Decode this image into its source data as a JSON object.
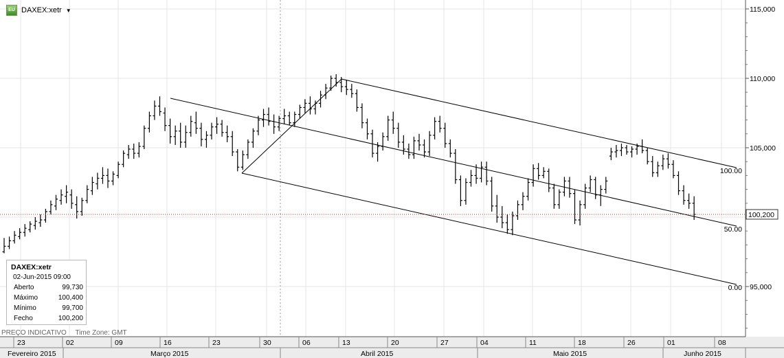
{
  "header": {
    "symbol": "DAXEX:xetr",
    "icon": "tradestation-chart-icon",
    "dropdown_icon": "caret-down-icon"
  },
  "info_box": {
    "symbol": "DAXEX:xetr",
    "datetime": "02-Jun-2015 09:00",
    "rows": [
      {
        "label": "Aberto",
        "value": "99,730"
      },
      {
        "label": "Máximo",
        "value": "100,400"
      },
      {
        "label": "Mínimo",
        "value": "99,700"
      },
      {
        "label": "Fecho",
        "value": "100,200"
      }
    ]
  },
  "footer": {
    "price_label": "PREÇO INDICATIVO",
    "timezone": "Time Zone: GMT"
  },
  "colors": {
    "price_bars": "#000000",
    "current_price_line": "#b03030",
    "grid": "#e6e6e6",
    "channel": "#000000"
  },
  "chart_data": {
    "type": "bar",
    "subtype": "ohlc",
    "y_axis": {
      "ticks": [
        {
          "value": 95,
          "label": "95,000"
        },
        {
          "value": 100,
          "label": ""
        },
        {
          "value": 105,
          "label": "105,000"
        },
        {
          "value": 110,
          "label": "110,000"
        },
        {
          "value": 115,
          "label": "115,000"
        }
      ],
      "range": [
        92.0,
        116.0
      ],
      "position": "right"
    },
    "current_price": {
      "value": 100.2,
      "label": "100,200"
    },
    "x_axis": {
      "day_ticks": [
        "23",
        "02",
        "09",
        "16",
        "23",
        "30",
        "06",
        "13",
        "20",
        "27",
        "04",
        "11",
        "18",
        "26",
        "01",
        "08"
      ],
      "months": [
        "Fevereiro 2015",
        "Março 2015",
        "Abril 2015",
        "Maio 2015",
        "Junho 2015"
      ]
    },
    "fib_levels": [
      {
        "label": "100.00",
        "value": 103.4
      },
      {
        "label": "50.00",
        "value": 99.2
      },
      {
        "label": "0.00",
        "value": 95.05
      }
    ],
    "ohlc": [
      [
        97.5,
        98.5,
        97.4,
        97.9
      ],
      [
        97.9,
        98.6,
        97.7,
        98.3
      ],
      [
        98.3,
        99.0,
        98.1,
        98.7
      ],
      [
        98.6,
        99.2,
        98.4,
        98.9
      ],
      [
        98.9,
        99.5,
        98.6,
        99.2
      ],
      [
        99.1,
        99.7,
        98.9,
        99.5
      ],
      [
        99.4,
        100.0,
        99.1,
        99.7
      ],
      [
        99.6,
        100.2,
        99.3,
        99.8
      ],
      [
        99.8,
        100.6,
        99.6,
        100.4
      ],
      [
        100.4,
        101.2,
        100.2,
        100.9
      ],
      [
        100.8,
        101.6,
        100.5,
        101.3
      ],
      [
        101.2,
        102.0,
        100.9,
        101.6
      ],
      [
        101.5,
        102.3,
        101.0,
        101.8
      ],
      [
        101.6,
        102.0,
        100.6,
        101.0
      ],
      [
        100.9,
        101.5,
        99.9,
        100.4
      ],
      [
        100.4,
        101.4,
        100.1,
        101.2
      ],
      [
        101.2,
        102.3,
        101.0,
        102.0
      ],
      [
        101.9,
        102.9,
        101.6,
        102.5
      ],
      [
        102.4,
        103.2,
        102.0,
        102.8
      ],
      [
        102.8,
        103.6,
        102.4,
        103.0
      ],
      [
        103.0,
        103.5,
        102.1,
        102.6
      ],
      [
        102.6,
        103.3,
        102.3,
        103.1
      ],
      [
        103.0,
        104.0,
        102.8,
        103.8
      ],
      [
        103.8,
        104.8,
        103.6,
        104.6
      ],
      [
        104.5,
        105.2,
        104.2,
        104.9
      ],
      [
        104.9,
        105.3,
        104.2,
        104.6
      ],
      [
        104.6,
        105.4,
        104.3,
        105.1
      ],
      [
        105.1,
        106.6,
        104.9,
        106.4
      ],
      [
        106.4,
        107.6,
        106.1,
        107.3
      ],
      [
        107.3,
        108.4,
        107.0,
        108.0
      ],
      [
        108.0,
        108.7,
        107.3,
        107.6
      ],
      [
        107.5,
        107.9,
        106.2,
        106.6
      ],
      [
        106.6,
        107.1,
        105.3,
        105.8
      ],
      [
        105.8,
        106.6,
        105.2,
        106.2
      ],
      [
        106.2,
        106.8,
        105.0,
        105.4
      ],
      [
        105.4,
        106.6,
        105.0,
        106.1
      ],
      [
        106.1,
        107.3,
        105.8,
        106.9
      ],
      [
        106.8,
        107.6,
        106.0,
        106.4
      ],
      [
        106.4,
        106.8,
        105.1,
        105.6
      ],
      [
        105.6,
        106.2,
        105.0,
        105.9
      ],
      [
        105.9,
        106.8,
        105.6,
        106.5
      ],
      [
        106.5,
        107.2,
        106.0,
        106.7
      ],
      [
        106.7,
        107.0,
        105.8,
        106.1
      ],
      [
        106.1,
        106.6,
        105.4,
        105.8
      ],
      [
        105.8,
        106.2,
        104.4,
        104.7
      ],
      [
        104.7,
        104.9,
        103.3,
        103.6
      ],
      [
        103.6,
        104.8,
        103.4,
        104.5
      ],
      [
        104.5,
        105.6,
        104.2,
        105.4
      ],
      [
        105.4,
        106.4,
        105.0,
        106.2
      ],
      [
        106.2,
        107.3,
        105.9,
        107.0
      ],
      [
        107.0,
        107.8,
        106.5,
        107.4
      ],
      [
        107.4,
        107.9,
        106.6,
        106.9
      ],
      [
        106.9,
        107.4,
        106.0,
        106.5
      ],
      [
        106.5,
        107.3,
        106.2,
        107.1
      ],
      [
        107.1,
        107.8,
        106.7,
        107.3
      ],
      [
        107.3,
        107.6,
        106.6,
        106.8
      ],
      [
        106.8,
        107.6,
        106.5,
        107.4
      ],
      [
        107.4,
        108.1,
        107.1,
        107.9
      ],
      [
        107.9,
        108.5,
        107.5,
        108.2
      ],
      [
        108.2,
        108.7,
        107.4,
        107.8
      ],
      [
        107.8,
        108.4,
        107.4,
        108.2
      ],
      [
        108.2,
        109.1,
        107.9,
        108.8
      ],
      [
        108.8,
        109.6,
        108.5,
        109.3
      ],
      [
        109.3,
        110.2,
        109.1,
        110.0
      ],
      [
        110.0,
        110.3,
        109.4,
        109.7
      ],
      [
        109.7,
        110.1,
        109.0,
        109.4
      ],
      [
        109.4,
        109.9,
        108.8,
        109.2
      ],
      [
        109.2,
        109.6,
        108.6,
        108.9
      ],
      [
        108.9,
        109.2,
        107.6,
        107.9
      ],
      [
        107.9,
        108.2,
        106.4,
        106.8
      ],
      [
        106.8,
        107.1,
        105.6,
        106.0
      ],
      [
        106.0,
        106.3,
        104.3,
        104.6
      ],
      [
        104.6,
        105.4,
        104.0,
        105.1
      ],
      [
        105.1,
        106.1,
        104.8,
        105.8
      ],
      [
        105.8,
        107.3,
        105.5,
        107.0
      ],
      [
        107.0,
        107.6,
        106.0,
        106.4
      ],
      [
        106.4,
        106.8,
        105.0,
        105.4
      ],
      [
        105.4,
        105.9,
        104.5,
        104.9
      ],
      [
        104.9,
        105.3,
        104.2,
        104.5
      ],
      [
        104.5,
        105.8,
        104.2,
        105.5
      ],
      [
        105.5,
        106.0,
        104.8,
        105.2
      ],
      [
        105.2,
        105.6,
        104.3,
        104.7
      ],
      [
        104.7,
        106.2,
        104.4,
        105.9
      ],
      [
        105.9,
        107.2,
        105.6,
        106.9
      ],
      [
        106.9,
        107.3,
        106.1,
        106.4
      ],
      [
        106.4,
        106.8,
        105.0,
        105.3
      ],
      [
        105.3,
        105.6,
        104.3,
        104.6
      ],
      [
        104.6,
        104.9,
        102.4,
        102.7
      ],
      [
        102.7,
        103.0,
        100.8,
        101.2
      ],
      [
        101.2,
        102.8,
        100.9,
        102.5
      ],
      [
        102.5,
        103.4,
        102.2,
        103.0
      ],
      [
        103.0,
        103.8,
        102.4,
        102.8
      ],
      [
        102.8,
        104.0,
        102.5,
        103.6
      ],
      [
        103.6,
        104.0,
        102.3,
        102.6
      ],
      [
        102.6,
        102.9,
        100.4,
        100.8
      ],
      [
        100.8,
        101.6,
        99.6,
        100.0
      ],
      [
        100.0,
        100.8,
        99.2,
        99.6
      ],
      [
        99.6,
        100.2,
        98.8,
        99.1
      ],
      [
        99.1,
        100.4,
        98.7,
        100.1
      ],
      [
        100.1,
        101.2,
        99.8,
        100.9
      ],
      [
        100.9,
        101.8,
        100.5,
        101.5
      ],
      [
        101.5,
        102.8,
        101.2,
        102.5
      ],
      [
        102.5,
        103.8,
        102.2,
        103.5
      ],
      [
        103.5,
        103.9,
        102.7,
        103.0
      ],
      [
        103.0,
        103.6,
        102.8,
        103.3
      ],
      [
        103.3,
        103.5,
        101.8,
        102.1
      ],
      [
        102.1,
        102.4,
        100.6,
        100.9
      ],
      [
        100.9,
        102.0,
        100.6,
        101.8
      ],
      [
        101.8,
        102.9,
        101.5,
        102.6
      ],
      [
        102.6,
        102.9,
        101.4,
        101.7
      ],
      [
        101.7,
        102.0,
        99.5,
        99.8
      ],
      [
        99.8,
        101.2,
        99.4,
        100.9
      ],
      [
        100.9,
        102.4,
        100.6,
        102.1
      ],
      [
        102.1,
        103.0,
        101.8,
        102.7
      ],
      [
        102.7,
        102.9,
        101.3,
        101.6
      ],
      [
        101.6,
        102.3,
        100.8,
        102.0
      ],
      [
        102.0,
        102.9,
        101.7,
        102.6
      ],
      [
        104.4,
        105.0,
        104.1,
        104.7
      ],
      [
        104.7,
        105.2,
        104.3,
        104.8
      ],
      [
        104.8,
        105.3,
        104.4,
        105.0
      ],
      [
        105.0,
        105.2,
        104.5,
        104.7
      ],
      [
        104.7,
        105.1,
        104.3,
        104.9
      ],
      [
        104.9,
        105.3,
        104.5,
        105.1
      ],
      [
        105.1,
        105.6,
        104.6,
        104.8
      ],
      [
        104.8,
        105.0,
        103.8,
        104.0
      ],
      [
        104.0,
        104.4,
        102.9,
        103.2
      ],
      [
        103.2,
        104.0,
        102.9,
        103.7
      ],
      [
        103.7,
        104.5,
        103.4,
        104.2
      ],
      [
        104.2,
        104.6,
        103.5,
        103.8
      ],
      [
        103.8,
        104.1,
        102.8,
        103.0
      ],
      [
        103.0,
        103.3,
        101.6,
        101.9
      ],
      [
        101.9,
        102.3,
        100.9,
        101.2
      ],
      [
        101.2,
        101.7,
        100.6,
        101.0
      ],
      [
        101.0,
        101.5,
        99.8,
        100.2
      ]
    ]
  }
}
